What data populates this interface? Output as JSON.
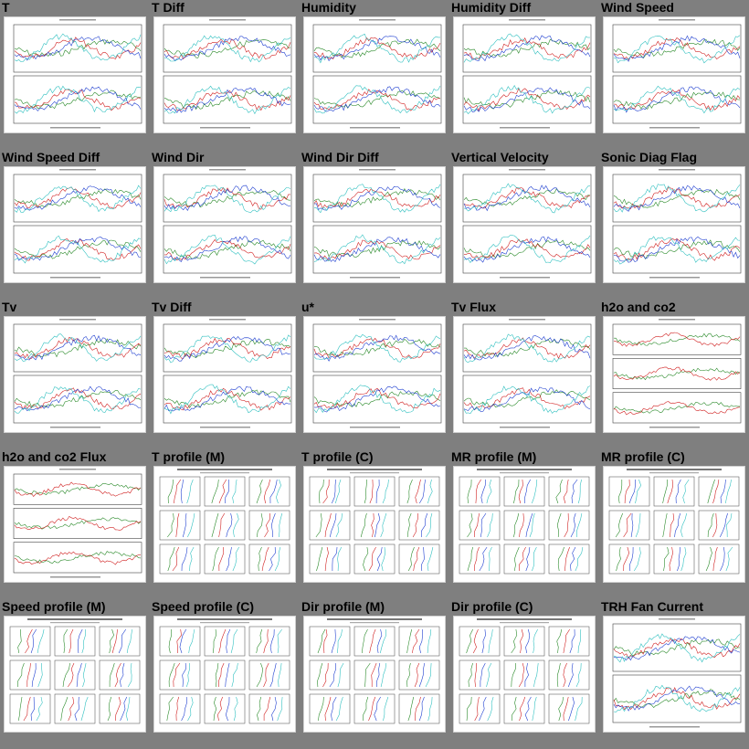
{
  "tiles": [
    {
      "title": "T",
      "kind": "ts2",
      "thumb": "chart-thumbnail"
    },
    {
      "title": "T Diff",
      "kind": "ts2",
      "thumb": "chart-thumbnail"
    },
    {
      "title": "Humidity",
      "kind": "ts2",
      "thumb": "chart-thumbnail"
    },
    {
      "title": "Humidity Diff",
      "kind": "ts2",
      "thumb": "chart-thumbnail"
    },
    {
      "title": "Wind Speed",
      "kind": "ts2",
      "thumb": "chart-thumbnail"
    },
    {
      "title": "Wind Speed Diff",
      "kind": "ts2",
      "thumb": "chart-thumbnail"
    },
    {
      "title": "Wind Dir",
      "kind": "ts2",
      "thumb": "chart-thumbnail"
    },
    {
      "title": "Wind Dir Diff",
      "kind": "ts2",
      "thumb": "chart-thumbnail"
    },
    {
      "title": "Vertical Velocity",
      "kind": "ts2",
      "thumb": "chart-thumbnail"
    },
    {
      "title": "Sonic Diag Flag",
      "kind": "ts2",
      "thumb": "chart-thumbnail"
    },
    {
      "title": "Tv",
      "kind": "ts2",
      "thumb": "chart-thumbnail"
    },
    {
      "title": "Tv Diff",
      "kind": "ts2",
      "thumb": "chart-thumbnail"
    },
    {
      "title": "u*",
      "kind": "ts2",
      "thumb": "chart-thumbnail"
    },
    {
      "title": "Tv Flux",
      "kind": "ts2",
      "thumb": "chart-thumbnail"
    },
    {
      "title": "h2o and co2",
      "kind": "ts3",
      "thumb": "chart-thumbnail"
    },
    {
      "title": "h2o and co2 Flux",
      "kind": "ts3",
      "thumb": "chart-thumbnail"
    },
    {
      "title": "T profile (M)",
      "kind": "prof",
      "thumb": "chart-thumbnail"
    },
    {
      "title": "T profile (C)",
      "kind": "prof",
      "thumb": "chart-thumbnail"
    },
    {
      "title": "MR profile (M)",
      "kind": "prof",
      "thumb": "chart-thumbnail"
    },
    {
      "title": "MR profile (C)",
      "kind": "prof",
      "thumb": "chart-thumbnail"
    },
    {
      "title": "Speed profile (M)",
      "kind": "prof",
      "thumb": "chart-thumbnail"
    },
    {
      "title": "Speed profile (C)",
      "kind": "prof",
      "thumb": "chart-thumbnail"
    },
    {
      "title": "Dir profile (M)",
      "kind": "prof",
      "thumb": "chart-thumbnail"
    },
    {
      "title": "Dir profile (C)",
      "kind": "prof",
      "thumb": "chart-thumbnail"
    },
    {
      "title": "TRH Fan Current",
      "kind": "ts2",
      "thumb": "chart-thumbnail"
    }
  ],
  "colors": {
    "background": "#7f7f7f",
    "series": [
      "#2a8a2a",
      "#d02020",
      "#1f3fd0",
      "#30c0c0",
      "#e0a000",
      "#a020c0",
      "#c0c000",
      "#666666"
    ]
  }
}
